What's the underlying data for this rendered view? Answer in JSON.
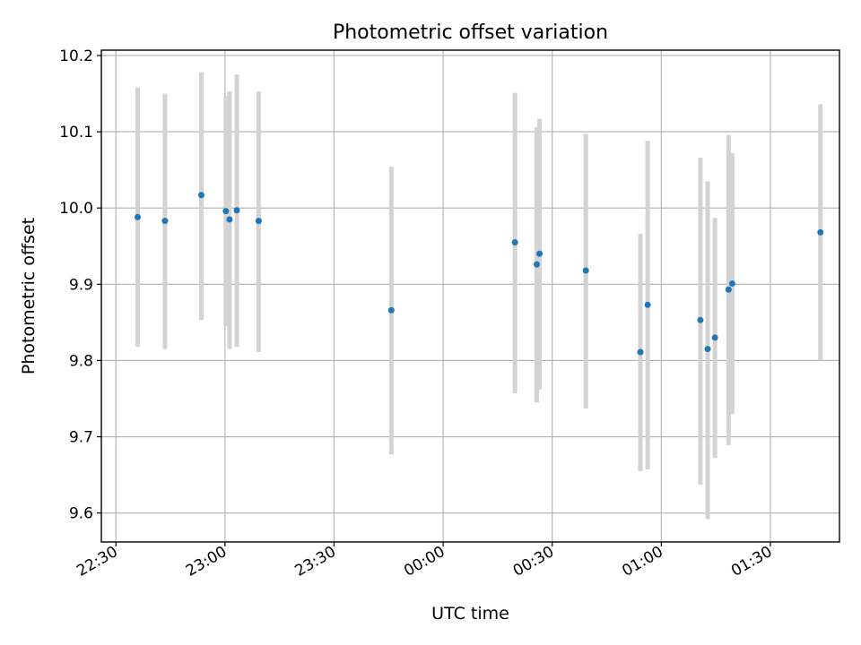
{
  "chart_data": {
    "type": "scatter",
    "title": "Photometric offset variation",
    "xlabel": "UTC time",
    "ylabel": "Photometric offset",
    "x_is_time": true,
    "xlim": [
      "22:26",
      "01:49"
    ],
    "ylim": [
      9.562,
      10.207
    ],
    "x_ticks": [
      "22:30",
      "23:00",
      "23:30",
      "00:00",
      "00:30",
      "01:00",
      "01:30"
    ],
    "y_ticks": [
      "9.6",
      "9.7",
      "9.8",
      "9.9",
      "10.0",
      "10.1",
      "10.2"
    ],
    "grid": true,
    "colors": {
      "points": "#1f77b4",
      "error_bars": "#d3d3d3"
    },
    "points": [
      {
        "t": "22:36:00",
        "y": 9.988,
        "lo": 9.818,
        "hi": 10.158
      },
      {
        "t": "22:43:30",
        "y": 9.983,
        "lo": 9.815,
        "hi": 10.15
      },
      {
        "t": "22:53:30",
        "y": 10.017,
        "lo": 9.853,
        "hi": 10.178
      },
      {
        "t": "23:00:15",
        "y": 9.996,
        "lo": 9.845,
        "hi": 10.147
      },
      {
        "t": "23:01:15",
        "y": 9.985,
        "lo": 9.815,
        "hi": 10.153
      },
      {
        "t": "23:03:15",
        "y": 9.997,
        "lo": 9.818,
        "hi": 10.175
      },
      {
        "t": "23:09:15",
        "y": 9.983,
        "lo": 9.811,
        "hi": 10.153
      },
      {
        "t": "23:45:45",
        "y": 9.866,
        "lo": 9.677,
        "hi": 10.054
      },
      {
        "t": "00:19:45",
        "y": 9.955,
        "lo": 9.757,
        "hi": 10.151
      },
      {
        "t": "00:25:45",
        "y": 9.926,
        "lo": 9.745,
        "hi": 10.106
      },
      {
        "t": "00:26:30",
        "y": 9.94,
        "lo": 9.762,
        "hi": 10.117
      },
      {
        "t": "00:39:15",
        "y": 9.918,
        "lo": 9.737,
        "hi": 10.097
      },
      {
        "t": "00:54:15",
        "y": 9.811,
        "lo": 9.655,
        "hi": 9.966
      },
      {
        "t": "00:56:15",
        "y": 9.873,
        "lo": 9.657,
        "hi": 10.088
      },
      {
        "t": "01:10:45",
        "y": 9.853,
        "lo": 9.637,
        "hi": 10.066
      },
      {
        "t": "01:12:45",
        "y": 9.815,
        "lo": 9.592,
        "hi": 10.035
      },
      {
        "t": "01:14:45",
        "y": 9.83,
        "lo": 9.672,
        "hi": 9.987
      },
      {
        "t": "01:18:30",
        "y": 9.893,
        "lo": 9.689,
        "hi": 10.096
      },
      {
        "t": "01:19:30",
        "y": 9.901,
        "lo": 9.73,
        "hi": 10.072
      },
      {
        "t": "01:43:45",
        "y": 9.968,
        "lo": 9.8,
        "hi": 10.136
      }
    ]
  }
}
